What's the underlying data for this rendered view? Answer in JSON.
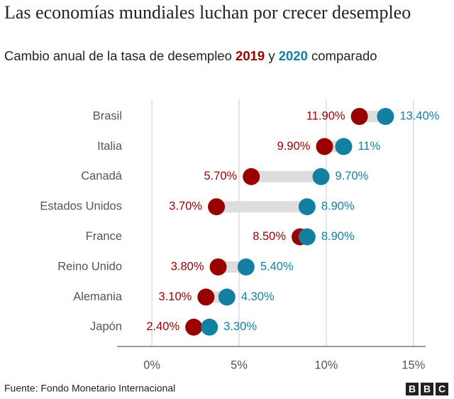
{
  "chart_data": {
    "type": "dumbbell",
    "title": "Las economías mundiales luchan por crecer desempleo",
    "subtitle_parts": [
      "Cambio anual de la tasa de desempleo",
      "y",
      "comparado"
    ],
    "categories": [
      "Brasil",
      "Italia",
      "Canadá",
      "Estados Unidos",
      "France",
      "Reino Unido",
      "Alemania",
      "Japón"
    ],
    "series": [
      {
        "name": "2019",
        "color": "#990000",
        "values": [
          11.9,
          9.9,
          5.7,
          3.7,
          8.5,
          3.8,
          3.1,
          2.4
        ],
        "value_labels": [
          "11.90%",
          "9.90%",
          "5.70%",
          "3.70%",
          "8.50%",
          "3.80%",
          "3.10%",
          "2.40%"
        ]
      },
      {
        "name": "2020",
        "color": "#1380a1",
        "values": [
          13.4,
          11,
          9.7,
          8.9,
          8.9,
          5.4,
          4.3,
          3.3
        ],
        "value_labels": [
          "13.40%",
          "11%",
          "9.70%",
          "8.90%",
          "8.90%",
          "5.40%",
          "4.30%",
          "3.30%"
        ]
      }
    ],
    "connector_color": "#dddddd",
    "xlim": [
      -2,
      15.7
    ],
    "xticks": [
      {
        "value": 0,
        "label": "0%"
      },
      {
        "value": 5,
        "label": "5%"
      },
      {
        "value": 10,
        "label": "10%"
      },
      {
        "value": 15,
        "label": "15%"
      }
    ],
    "grid": true,
    "source": "Fuente: Fondo Monetario Internacional",
    "logo": [
      "B",
      "B",
      "C"
    ]
  }
}
